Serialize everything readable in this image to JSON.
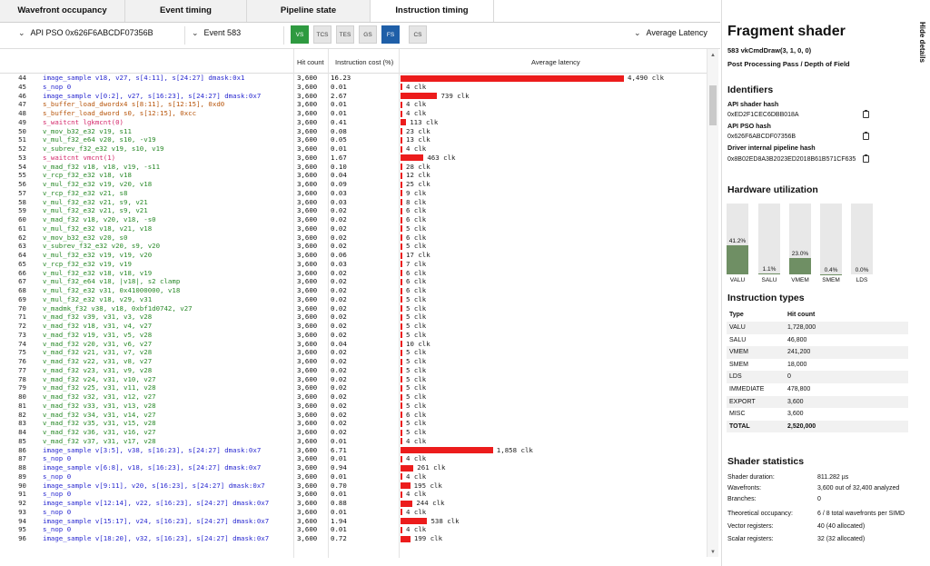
{
  "tabs": [
    "Wavefront occupancy",
    "Event timing",
    "Pipeline state",
    "Instruction timing"
  ],
  "active_tab": 3,
  "toolbar": {
    "pso": "API PSO 0x626F6ABCDF07356B",
    "event": "Event 583",
    "stages": [
      "VS",
      "TCS",
      "TES",
      "GS",
      "FS",
      "CS"
    ],
    "latency_mode": "Average Latency"
  },
  "table": {
    "headers": {
      "hit": "Hit count",
      "cost": "Instruction cost (%)",
      "latency": "Average latency"
    },
    "latency_max_clk": 4490,
    "rows": [
      {
        "ln": "44",
        "t": "vmem",
        "ins": "image_sample v18, v27, s[4:11], s[24:27] dmask:0x1",
        "hit": "3,600",
        "cost": "16.23",
        "lat": 4490,
        "lat_text": "4,490 clk"
      },
      {
        "ln": "45",
        "t": "vmem",
        "ins": "s_nop 0",
        "hit": "3,600",
        "cost": "0.01",
        "lat": 4,
        "lat_text": "4 clk"
      },
      {
        "ln": "46",
        "t": "vmem",
        "ins": "image_sample v[0:2], v27, s[16:23], s[24:27] dmask:0x7",
        "hit": "3,600",
        "cost": "2.67",
        "lat": 739,
        "lat_text": "739 clk"
      },
      {
        "ln": "47",
        "t": "sca",
        "ins": "s_buffer_load_dwordx4 s[8:11], s[12:15], 0xd0",
        "hit": "3,600",
        "cost": "0.01",
        "lat": 4,
        "lat_text": "4 clk"
      },
      {
        "ln": "48",
        "t": "sca",
        "ins": "s_buffer_load_dword s0, s[12:15], 0xcc",
        "hit": "3,600",
        "cost": "0.01",
        "lat": 4,
        "lat_text": "4 clk"
      },
      {
        "ln": "49",
        "t": "wait",
        "ins": "s_waitcnt lgkmcnt(0)",
        "hit": "3,600",
        "cost": "0.41",
        "lat": 113,
        "lat_text": "113 clk"
      },
      {
        "ln": "50",
        "t": "alu",
        "ins": "v_mov_b32_e32 v19, s11",
        "hit": "3,600",
        "cost": "0.08",
        "lat": 23,
        "lat_text": "23 clk"
      },
      {
        "ln": "51",
        "t": "alu",
        "ins": "v_mul_f32_e64 v20, s10, -v19",
        "hit": "3,600",
        "cost": "0.05",
        "lat": 13,
        "lat_text": "13 clk"
      },
      {
        "ln": "52",
        "t": "alu",
        "ins": "v_subrev_f32_e32 v19, s10, v19",
        "hit": "3,600",
        "cost": "0.01",
        "lat": 4,
        "lat_text": "4 clk"
      },
      {
        "ln": "53",
        "t": "wait",
        "ins": "s_waitcnt vmcnt(1)",
        "hit": "3,600",
        "cost": "1.67",
        "lat": 463,
        "lat_text": "463 clk"
      },
      {
        "ln": "54",
        "t": "alu",
        "ins": "v_mad_f32 v18, v18, v19, -s11",
        "hit": "3,600",
        "cost": "0.10",
        "lat": 28,
        "lat_text": "28 clk"
      },
      {
        "ln": "55",
        "t": "alu",
        "ins": "v_rcp_f32_e32 v18, v18",
        "hit": "3,600",
        "cost": "0.04",
        "lat": 12,
        "lat_text": "12 clk"
      },
      {
        "ln": "56",
        "t": "alu",
        "ins": "v_mul_f32_e32 v19, v20, v18",
        "hit": "3,600",
        "cost": "0.09",
        "lat": 25,
        "lat_text": "25 clk"
      },
      {
        "ln": "57",
        "t": "alu",
        "ins": "v_rcp_f32_e32 v21, s8",
        "hit": "3,600",
        "cost": "0.03",
        "lat": 9,
        "lat_text": "9 clk"
      },
      {
        "ln": "58",
        "t": "alu",
        "ins": "v_mul_f32_e32 v21, s9, v21",
        "hit": "3,600",
        "cost": "0.03",
        "lat": 8,
        "lat_text": "8 clk"
      },
      {
        "ln": "59",
        "t": "alu",
        "ins": "v_mul_f32_e32 v21, s9, v21",
        "hit": "3,600",
        "cost": "0.02",
        "lat": 6,
        "lat_text": "6 clk"
      },
      {
        "ln": "60",
        "t": "alu",
        "ins": "v_mad_f32 v18, v20, v18, -s0",
        "hit": "3,600",
        "cost": "0.02",
        "lat": 6,
        "lat_text": "6 clk"
      },
      {
        "ln": "61",
        "t": "alu",
        "ins": "v_mul_f32_e32 v18, v21, v18",
        "hit": "3,600",
        "cost": "0.02",
        "lat": 5,
        "lat_text": "5 clk"
      },
      {
        "ln": "62",
        "t": "alu",
        "ins": "v_mov_b32_e32 v20, s0",
        "hit": "3,600",
        "cost": "0.02",
        "lat": 6,
        "lat_text": "6 clk"
      },
      {
        "ln": "63",
        "t": "alu",
        "ins": "v_subrev_f32_e32 v20, s9, v20",
        "hit": "3,600",
        "cost": "0.02",
        "lat": 5,
        "lat_text": "5 clk"
      },
      {
        "ln": "64",
        "t": "alu",
        "ins": "v_mul_f32_e32 v19, v19, v20",
        "hit": "3,600",
        "cost": "0.06",
        "lat": 17,
        "lat_text": "17 clk"
      },
      {
        "ln": "65",
        "t": "alu",
        "ins": "v_rcp_f32_e32 v19, v19",
        "hit": "3,600",
        "cost": "0.03",
        "lat": 7,
        "lat_text": "7 clk"
      },
      {
        "ln": "66",
        "t": "alu",
        "ins": "v_mul_f32_e32 v18, v18, v19",
        "hit": "3,600",
        "cost": "0.02",
        "lat": 6,
        "lat_text": "6 clk"
      },
      {
        "ln": "67",
        "t": "alu",
        "ins": "v_mul_f32_e64 v18, |v18|, s2 clamp",
        "hit": "3,600",
        "cost": "0.02",
        "lat": 6,
        "lat_text": "6 clk"
      },
      {
        "ln": "68",
        "t": "alu",
        "ins": "v_mul_f32_e32 v31, 0x41000000, v18",
        "hit": "3,600",
        "cost": "0.02",
        "lat": 6,
        "lat_text": "6 clk"
      },
      {
        "ln": "69",
        "t": "alu",
        "ins": "v_mul_f32_e32 v18, v29, v31",
        "hit": "3,600",
        "cost": "0.02",
        "lat": 5,
        "lat_text": "5 clk"
      },
      {
        "ln": "70",
        "t": "alu",
        "ins": "v_madmk_f32 v38, v18, 0xbf1d0742, v27",
        "hit": "3,600",
        "cost": "0.02",
        "lat": 5,
        "lat_text": "5 clk"
      },
      {
        "ln": "71",
        "t": "alu",
        "ins": "v_mad_f32 v39, v31, v3, v28",
        "hit": "3,600",
        "cost": "0.02",
        "lat": 5,
        "lat_text": "5 clk"
      },
      {
        "ln": "72",
        "t": "alu",
        "ins": "v_mad_f32 v18, v31, v4, v27",
        "hit": "3,600",
        "cost": "0.02",
        "lat": 5,
        "lat_text": "5 clk"
      },
      {
        "ln": "73",
        "t": "alu",
        "ins": "v_mad_f32 v19, v31, v5, v28",
        "hit": "3,600",
        "cost": "0.02",
        "lat": 5,
        "lat_text": "5 clk"
      },
      {
        "ln": "74",
        "t": "alu",
        "ins": "v_mad_f32 v20, v31, v6, v27",
        "hit": "3,600",
        "cost": "0.04",
        "lat": 10,
        "lat_text": "10 clk"
      },
      {
        "ln": "75",
        "t": "alu",
        "ins": "v_mad_f32 v21, v31, v7, v28",
        "hit": "3,600",
        "cost": "0.02",
        "lat": 5,
        "lat_text": "5 clk"
      },
      {
        "ln": "76",
        "t": "alu",
        "ins": "v_mad_f32 v22, v31, v8, v27",
        "hit": "3,600",
        "cost": "0.02",
        "lat": 5,
        "lat_text": "5 clk"
      },
      {
        "ln": "77",
        "t": "alu",
        "ins": "v_mad_f32 v23, v31, v9, v28",
        "hit": "3,600",
        "cost": "0.02",
        "lat": 5,
        "lat_text": "5 clk"
      },
      {
        "ln": "78",
        "t": "alu",
        "ins": "v_mad_f32 v24, v31, v10, v27",
        "hit": "3,600",
        "cost": "0.02",
        "lat": 5,
        "lat_text": "5 clk"
      },
      {
        "ln": "79",
        "t": "alu",
        "ins": "v_mad_f32 v25, v31, v11, v28",
        "hit": "3,600",
        "cost": "0.02",
        "lat": 5,
        "lat_text": "5 clk"
      },
      {
        "ln": "80",
        "t": "alu",
        "ins": "v_mad_f32 v32, v31, v12, v27",
        "hit": "3,600",
        "cost": "0.02",
        "lat": 5,
        "lat_text": "5 clk"
      },
      {
        "ln": "81",
        "t": "alu",
        "ins": "v_mad_f32 v33, v31, v13, v28",
        "hit": "3,600",
        "cost": "0.02",
        "lat": 5,
        "lat_text": "5 clk"
      },
      {
        "ln": "82",
        "t": "alu",
        "ins": "v_mad_f32 v34, v31, v14, v27",
        "hit": "3,600",
        "cost": "0.02",
        "lat": 6,
        "lat_text": "6 clk"
      },
      {
        "ln": "83",
        "t": "alu",
        "ins": "v_mad_f32 v35, v31, v15, v28",
        "hit": "3,600",
        "cost": "0.02",
        "lat": 5,
        "lat_text": "5 clk"
      },
      {
        "ln": "84",
        "t": "alu",
        "ins": "v_mad_f32 v36, v31, v16, v27",
        "hit": "3,600",
        "cost": "0.02",
        "lat": 5,
        "lat_text": "5 clk"
      },
      {
        "ln": "85",
        "t": "alu",
        "ins": "v_mad_f32 v37, v31, v17, v28",
        "hit": "3,600",
        "cost": "0.01",
        "lat": 4,
        "lat_text": "4 clk"
      },
      {
        "ln": "86",
        "t": "vmem",
        "ins": "image_sample v[3:5], v38, s[16:23], s[24:27] dmask:0x7",
        "hit": "3,600",
        "cost": "6.71",
        "lat": 1858,
        "lat_text": "1,858 clk"
      },
      {
        "ln": "87",
        "t": "vmem",
        "ins": "s_nop 0",
        "hit": "3,600",
        "cost": "0.01",
        "lat": 4,
        "lat_text": "4 clk"
      },
      {
        "ln": "88",
        "t": "vmem",
        "ins": "image_sample v[6:8], v18, s[16:23], s[24:27] dmask:0x7",
        "hit": "3,600",
        "cost": "0.94",
        "lat": 261,
        "lat_text": "261 clk"
      },
      {
        "ln": "89",
        "t": "vmem",
        "ins": "s_nop 0",
        "hit": "3,600",
        "cost": "0.01",
        "lat": 4,
        "lat_text": "4 clk"
      },
      {
        "ln": "90",
        "t": "vmem",
        "ins": "image_sample v[9:11], v20, s[16:23], s[24:27] dmask:0x7",
        "hit": "3,600",
        "cost": "0.70",
        "lat": 195,
        "lat_text": "195 clk"
      },
      {
        "ln": "91",
        "t": "vmem",
        "ins": "s_nop 0",
        "hit": "3,600",
        "cost": "0.01",
        "lat": 4,
        "lat_text": "4 clk"
      },
      {
        "ln": "92",
        "t": "vmem",
        "ins": "image_sample v[12:14], v22, s[16:23], s[24:27] dmask:0x7",
        "hit": "3,600",
        "cost": "0.88",
        "lat": 244,
        "lat_text": "244 clk"
      },
      {
        "ln": "93",
        "t": "vmem",
        "ins": "s_nop 0",
        "hit": "3,600",
        "cost": "0.01",
        "lat": 4,
        "lat_text": "4 clk"
      },
      {
        "ln": "94",
        "t": "vmem",
        "ins": "image_sample v[15:17], v24, s[16:23], s[24:27] dmask:0x7",
        "hit": "3,600",
        "cost": "1.94",
        "lat": 538,
        "lat_text": "538 clk"
      },
      {
        "ln": "95",
        "t": "vmem",
        "ins": "s_nop 0",
        "hit": "3,600",
        "cost": "0.01",
        "lat": 4,
        "lat_text": "4 clk"
      },
      {
        "ln": "96",
        "t": "vmem",
        "ins": "image_sample v[18:20], v32, s[16:23], s[24:27] dmask:0x7",
        "hit": "3,600",
        "cost": "0.72",
        "lat": 199,
        "lat_text": "199 clk"
      }
    ]
  },
  "panel": {
    "hide_details": "Hide details",
    "title": "Fragment shader",
    "draw": "583 vkCmdDraw(3, 1, 0, 0)",
    "pass": "Post Processing Pass / Depth of Field",
    "identifiers_title": "Identifiers",
    "api_shader_hash_label": "API shader hash",
    "api_shader_hash": "0xED2F1CEC6DBB018A",
    "api_pso_hash_label": "API PSO hash",
    "api_pso_hash": "0x626F6ABCDF07356B",
    "driver_hash_label": "Driver internal pipeline hash",
    "driver_hash": "0x8B02ED8A3B2023ED2018B61B571CF635",
    "hw_title": "Hardware utilization",
    "hw": [
      {
        "label": "VALU",
        "pct": "41.2%",
        "value": 41.2
      },
      {
        "label": "SALU",
        "pct": "1.1%",
        "value": 1.1
      },
      {
        "label": "VMEM",
        "pct": "23.0%",
        "value": 23.0
      },
      {
        "label": "SMEM",
        "pct": "0.4%",
        "value": 0.4
      },
      {
        "label": "LDS",
        "pct": "0.0%",
        "value": 0.0
      }
    ],
    "it_title": "Instruction types",
    "it_head": {
      "type": "Type",
      "hits": "Hit count"
    },
    "it_rows": [
      {
        "type": "VALU",
        "hits": "1,728,000"
      },
      {
        "type": "SALU",
        "hits": "46,800"
      },
      {
        "type": "VMEM",
        "hits": "241,200"
      },
      {
        "type": "SMEM",
        "hits": "18,000"
      },
      {
        "type": "LDS",
        "hits": "0"
      },
      {
        "type": "IMMEDIATE",
        "hits": "478,800"
      },
      {
        "type": "EXPORT",
        "hits": "3,600"
      },
      {
        "type": "MISC",
        "hits": "3,600"
      },
      {
        "type": "TOTAL",
        "hits": "2,520,000"
      }
    ],
    "ss_title": "Shader statistics",
    "ss_rows": [
      {
        "k": "Shader duration:",
        "v": "811.282 µs"
      },
      {
        "k": "Wavefronts:",
        "v": "3,600 out of 32,400 analyzed"
      },
      {
        "k": "Branches:",
        "v": "0"
      },
      {
        "k": "Theoretical occupancy:",
        "v": "6 / 8 total wavefronts per SIMD"
      },
      {
        "k": "Vector registers:",
        "v": "40 (40 allocated)"
      },
      {
        "k": "Scalar registers:",
        "v": "32 (32 allocated)"
      }
    ]
  },
  "colors": {
    "bar": "#ec1c1c",
    "hw_fill": "#6f8f64",
    "vs": "#2e9a40",
    "fs": "#1f5fa8"
  }
}
